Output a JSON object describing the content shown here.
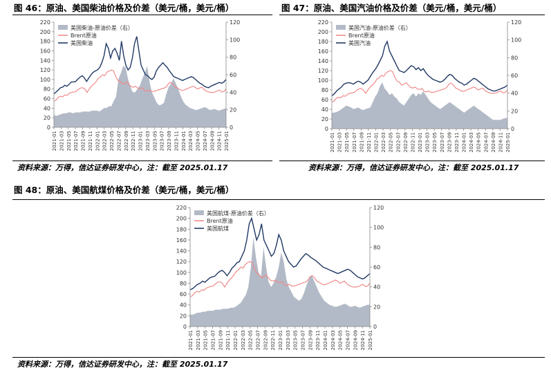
{
  "figures": [
    {
      "title": "图 46：原油、美国柴油价格及价差（美元/桶，美元/桶）",
      "source": "资料来源：万得，信达证券研发中心，注：截至 2025.01.17"
    },
    {
      "title": "图 47：原油、美国汽油价格及价差（美元/桶，美元/桶）",
      "source": "资料来源：万得，信达证券研发中心，注：截至 2025.01.17"
    },
    {
      "title": "图 48：原油、美国航煤价格及价差（美元/桶，美元/桶）",
      "source": "资料来源：万得，信达证券研发中心，注：截至 2025.01.17"
    }
  ],
  "colors": {
    "spread": "#b3bac7",
    "brent": "#f08a8a",
    "product": "#1f3864",
    "axis": "#888888",
    "text": "#333333"
  },
  "chart_data": [
    {
      "type": "area+line",
      "x_ticks": [
        "2021-01",
        "2021-03",
        "2021-05",
        "2021-07",
        "2021-09",
        "2021-11",
        "2022-01",
        "2022-03",
        "2022-05",
        "2022-07",
        "2022-09",
        "2022-11",
        "2023-01",
        "2023-03",
        "2023-05",
        "2023-07",
        "2023-09",
        "2023-11",
        "2024-01",
        "2024-03",
        "2024-05",
        "2024-07",
        "2024-09",
        "2024-11",
        "2025-01"
      ],
      "y_left": {
        "min": 0,
        "max": 220,
        "ticks": [
          0,
          20,
          40,
          60,
          80,
          100,
          120,
          140,
          160,
          180,
          200,
          220
        ]
      },
      "y_right": {
        "min": 0,
        "max": 120,
        "ticks": [
          0,
          20,
          40,
          60,
          80,
          100,
          120
        ]
      },
      "legend_position": "top-left",
      "series": [
        {
          "name": "美国柴油-原油价差（右）",
          "axis": "right",
          "kind": "area",
          "values": [
            14,
            13,
            14,
            15,
            16,
            16,
            17,
            17,
            16,
            17,
            17,
            17,
            18,
            18,
            18,
            18,
            19,
            19,
            19,
            18,
            20,
            22,
            22,
            24,
            24,
            30,
            35,
            55,
            62,
            70,
            68,
            55,
            46,
            40,
            40,
            44,
            48,
            56,
            62,
            70,
            52,
            40,
            34,
            28,
            25,
            26,
            28,
            38,
            46,
            50,
            56,
            50,
            44,
            36,
            30,
            26,
            24,
            22,
            21,
            20,
            20,
            21,
            22,
            23,
            22,
            20,
            20,
            21,
            20,
            19,
            20,
            21,
            22
          ]
        },
        {
          "name": "Brent原油",
          "axis": "left",
          "kind": "line",
          "values": [
            55,
            57,
            63,
            65,
            64,
            68,
            67,
            71,
            73,
            74,
            75,
            79,
            82,
            83,
            80,
            73,
            80,
            86,
            90,
            95,
            102,
            105,
            110,
            108,
            115,
            118,
            120,
            118,
            106,
            98,
            96,
            90,
            92,
            95,
            90,
            85,
            84,
            86,
            82,
            81,
            83,
            77,
            76,
            78,
            75,
            75,
            76,
            78,
            79,
            81,
            82,
            85,
            92,
            94,
            90,
            84,
            82,
            79,
            77,
            78,
            80,
            82,
            84,
            86,
            84,
            80,
            82,
            84,
            79,
            76,
            74,
            73,
            73,
            74,
            76,
            78,
            74,
            75,
            80
          ]
        },
        {
          "name": "美国柴油",
          "axis": "left",
          "kind": "line",
          "values": [
            70,
            74,
            78,
            83,
            84,
            88,
            86,
            90,
            95,
            95,
            96,
            101,
            105,
            108,
            103,
            96,
            103,
            110,
            115,
            118,
            120,
            125,
            135,
            150,
            175,
            165,
            145,
            160,
            165,
            155,
            140,
            180,
            150,
            130,
            120,
            125,
            145,
            175,
            190,
            160,
            130,
            120,
            110,
            108,
            103,
            100,
            105,
            118,
            125,
            130,
            135,
            130,
            125,
            118,
            112,
            106,
            104,
            102,
            100,
            98,
            100,
            102,
            104,
            106,
            104,
            100,
            96,
            92,
            90,
            86,
            84,
            83,
            86,
            88,
            90,
            92,
            94,
            92,
            95,
            100
          ]
        }
      ]
    },
    {
      "type": "area+line",
      "x_ticks": [
        "2021-01",
        "2021-03",
        "2021-05",
        "2021-07",
        "2021-09",
        "2021-11",
        "2022-01",
        "2022-03",
        "2022-05",
        "2022-07",
        "2022-09",
        "2022-11",
        "2023-01",
        "2023-03",
        "2023-05",
        "2023-07",
        "2023-09",
        "2023-11",
        "2024-01",
        "2024-03",
        "2024-05",
        "2024-07",
        "2024-09",
        "2024-11",
        "2025-01"
      ],
      "y_left": {
        "min": 0,
        "max": 220,
        "ticks": [
          0,
          20,
          40,
          60,
          80,
          100,
          120,
          140,
          160,
          180,
          200,
          220
        ]
      },
      "y_right": {
        "min": 0,
        "max": 120,
        "ticks": [
          0,
          20,
          40,
          60,
          80,
          100,
          120
        ]
      },
      "legend_position": "top-left",
      "series": [
        {
          "name": "美国汽油-原油价差（右）",
          "axis": "right",
          "kind": "area",
          "values": [
            18,
            18,
            19,
            20,
            22,
            24,
            26,
            25,
            24,
            22,
            23,
            24,
            22,
            21,
            22,
            23,
            24,
            30,
            36,
            40,
            48,
            52,
            45,
            42,
            38,
            40,
            36,
            34,
            30,
            28,
            26,
            30,
            34,
            38,
            40,
            36,
            40,
            38,
            42,
            38,
            34,
            30,
            28,
            26,
            24,
            22,
            24,
            26,
            28,
            30,
            28,
            26,
            24,
            22,
            20,
            18,
            20,
            22,
            24,
            26,
            24,
            22,
            20,
            18,
            16,
            14,
            12,
            10,
            10,
            10,
            10,
            11,
            12,
            12
          ]
        },
        {
          "name": "Brent原油",
          "axis": "left",
          "kind": "line",
          "values": [
            55,
            57,
            63,
            65,
            64,
            68,
            67,
            71,
            73,
            74,
            75,
            79,
            82,
            83,
            80,
            73,
            80,
            86,
            90,
            95,
            102,
            105,
            110,
            108,
            115,
            118,
            120,
            118,
            106,
            98,
            96,
            90,
            92,
            95,
            90,
            85,
            84,
            86,
            82,
            81,
            83,
            77,
            76,
            78,
            75,
            75,
            76,
            78,
            79,
            81,
            82,
            85,
            92,
            94,
            90,
            84,
            82,
            79,
            77,
            78,
            80,
            82,
            84,
            86,
            84,
            80,
            82,
            84,
            79,
            76,
            74,
            73,
            73,
            74,
            76,
            78,
            74,
            75,
            80
          ]
        },
        {
          "name": "美国汽油",
          "axis": "left",
          "kind": "line",
          "values": [
            68,
            72,
            78,
            82,
            86,
            92,
            94,
            95,
            94,
            92,
            96,
            98,
            96,
            92,
            96,
            100,
            108,
            116,
            122,
            130,
            140,
            150,
            170,
            180,
            160,
            150,
            140,
            130,
            120,
            118,
            116,
            120,
            125,
            130,
            128,
            122,
            126,
            120,
            124,
            116,
            110,
            106,
            102,
            100,
            98,
            96,
            98,
            102,
            108,
            112,
            110,
            104,
            100,
            96,
            94,
            90,
            92,
            96,
            100,
            104,
            102,
            98,
            94,
            90,
            86,
            82,
            80,
            78,
            78,
            80,
            82,
            84,
            86,
            90
          ]
        }
      ]
    },
    {
      "type": "area+line",
      "x_ticks": [
        "2021-01",
        "2021-03",
        "2021-05",
        "2021-07",
        "2021-09",
        "2021-11",
        "2022-01",
        "2022-03",
        "2022-05",
        "2022-07",
        "2022-09",
        "2022-11",
        "2023-01",
        "2023-03",
        "2023-05",
        "2023-07",
        "2023-09",
        "2023-11",
        "2024-01",
        "2024-03",
        "2024-05",
        "2024-07",
        "2024-09",
        "2024-11",
        "2025-01"
      ],
      "y_left": {
        "min": 0,
        "max": 220,
        "ticks": [
          0,
          20,
          40,
          60,
          80,
          100,
          120,
          140,
          160,
          180,
          200,
          220
        ]
      },
      "y_right": {
        "min": 0,
        "max": 120,
        "ticks": [
          0,
          20,
          40,
          60,
          80,
          100,
          120
        ]
      },
      "legend_position": "top-left",
      "series": [
        {
          "name": "美国航煤-原油价差（右）",
          "axis": "right",
          "kind": "area",
          "values": [
            12,
            12,
            13,
            14,
            14,
            15,
            15,
            16,
            16,
            16,
            17,
            17,
            17,
            18,
            18,
            18,
            19,
            19,
            20,
            22,
            24,
            28,
            32,
            40,
            60,
            90,
            70,
            55,
            50,
            80,
            60,
            45,
            40,
            44,
            50,
            60,
            75,
            65,
            48,
            40,
            35,
            30,
            28,
            26,
            28,
            34,
            42,
            48,
            52,
            46,
            40,
            34,
            30,
            26,
            24,
            22,
            21,
            20,
            20,
            21,
            22,
            23,
            22,
            20,
            20,
            21,
            20,
            19,
            20,
            21,
            22,
            22
          ]
        },
        {
          "name": "Brent原油",
          "axis": "left",
          "kind": "line",
          "values": [
            55,
            57,
            63,
            65,
            64,
            68,
            67,
            71,
            73,
            74,
            75,
            79,
            82,
            83,
            80,
            73,
            80,
            86,
            90,
            95,
            102,
            105,
            110,
            108,
            115,
            118,
            120,
            118,
            106,
            98,
            96,
            90,
            92,
            95,
            90,
            85,
            84,
            86,
            82,
            81,
            83,
            77,
            76,
            78,
            75,
            75,
            76,
            78,
            79,
            81,
            82,
            85,
            92,
            94,
            90,
            84,
            82,
            79,
            77,
            78,
            80,
            82,
            84,
            86,
            84,
            80,
            82,
            84,
            79,
            76,
            74,
            73,
            73,
            74,
            76,
            78,
            74,
            75,
            80
          ]
        },
        {
          "name": "美国航煤",
          "axis": "left",
          "kind": "line",
          "values": [
            68,
            70,
            74,
            78,
            80,
            84,
            82,
            86,
            90,
            92,
            93,
            98,
            102,
            104,
            100,
            94,
            100,
            108,
            112,
            118,
            120,
            130,
            140,
            160,
            190,
            200,
            180,
            160,
            170,
            190,
            160,
            150,
            140,
            130,
            135,
            150,
            170,
            160,
            140,
            130,
            120,
            115,
            110,
            112,
            118,
            125,
            130,
            135,
            132,
            128,
            125,
            122,
            118,
            114,
            110,
            108,
            106,
            104,
            102,
            100,
            98,
            100,
            102,
            104,
            106,
            104,
            100,
            96,
            92,
            90,
            88,
            90,
            94,
            98
          ]
        }
      ]
    }
  ]
}
